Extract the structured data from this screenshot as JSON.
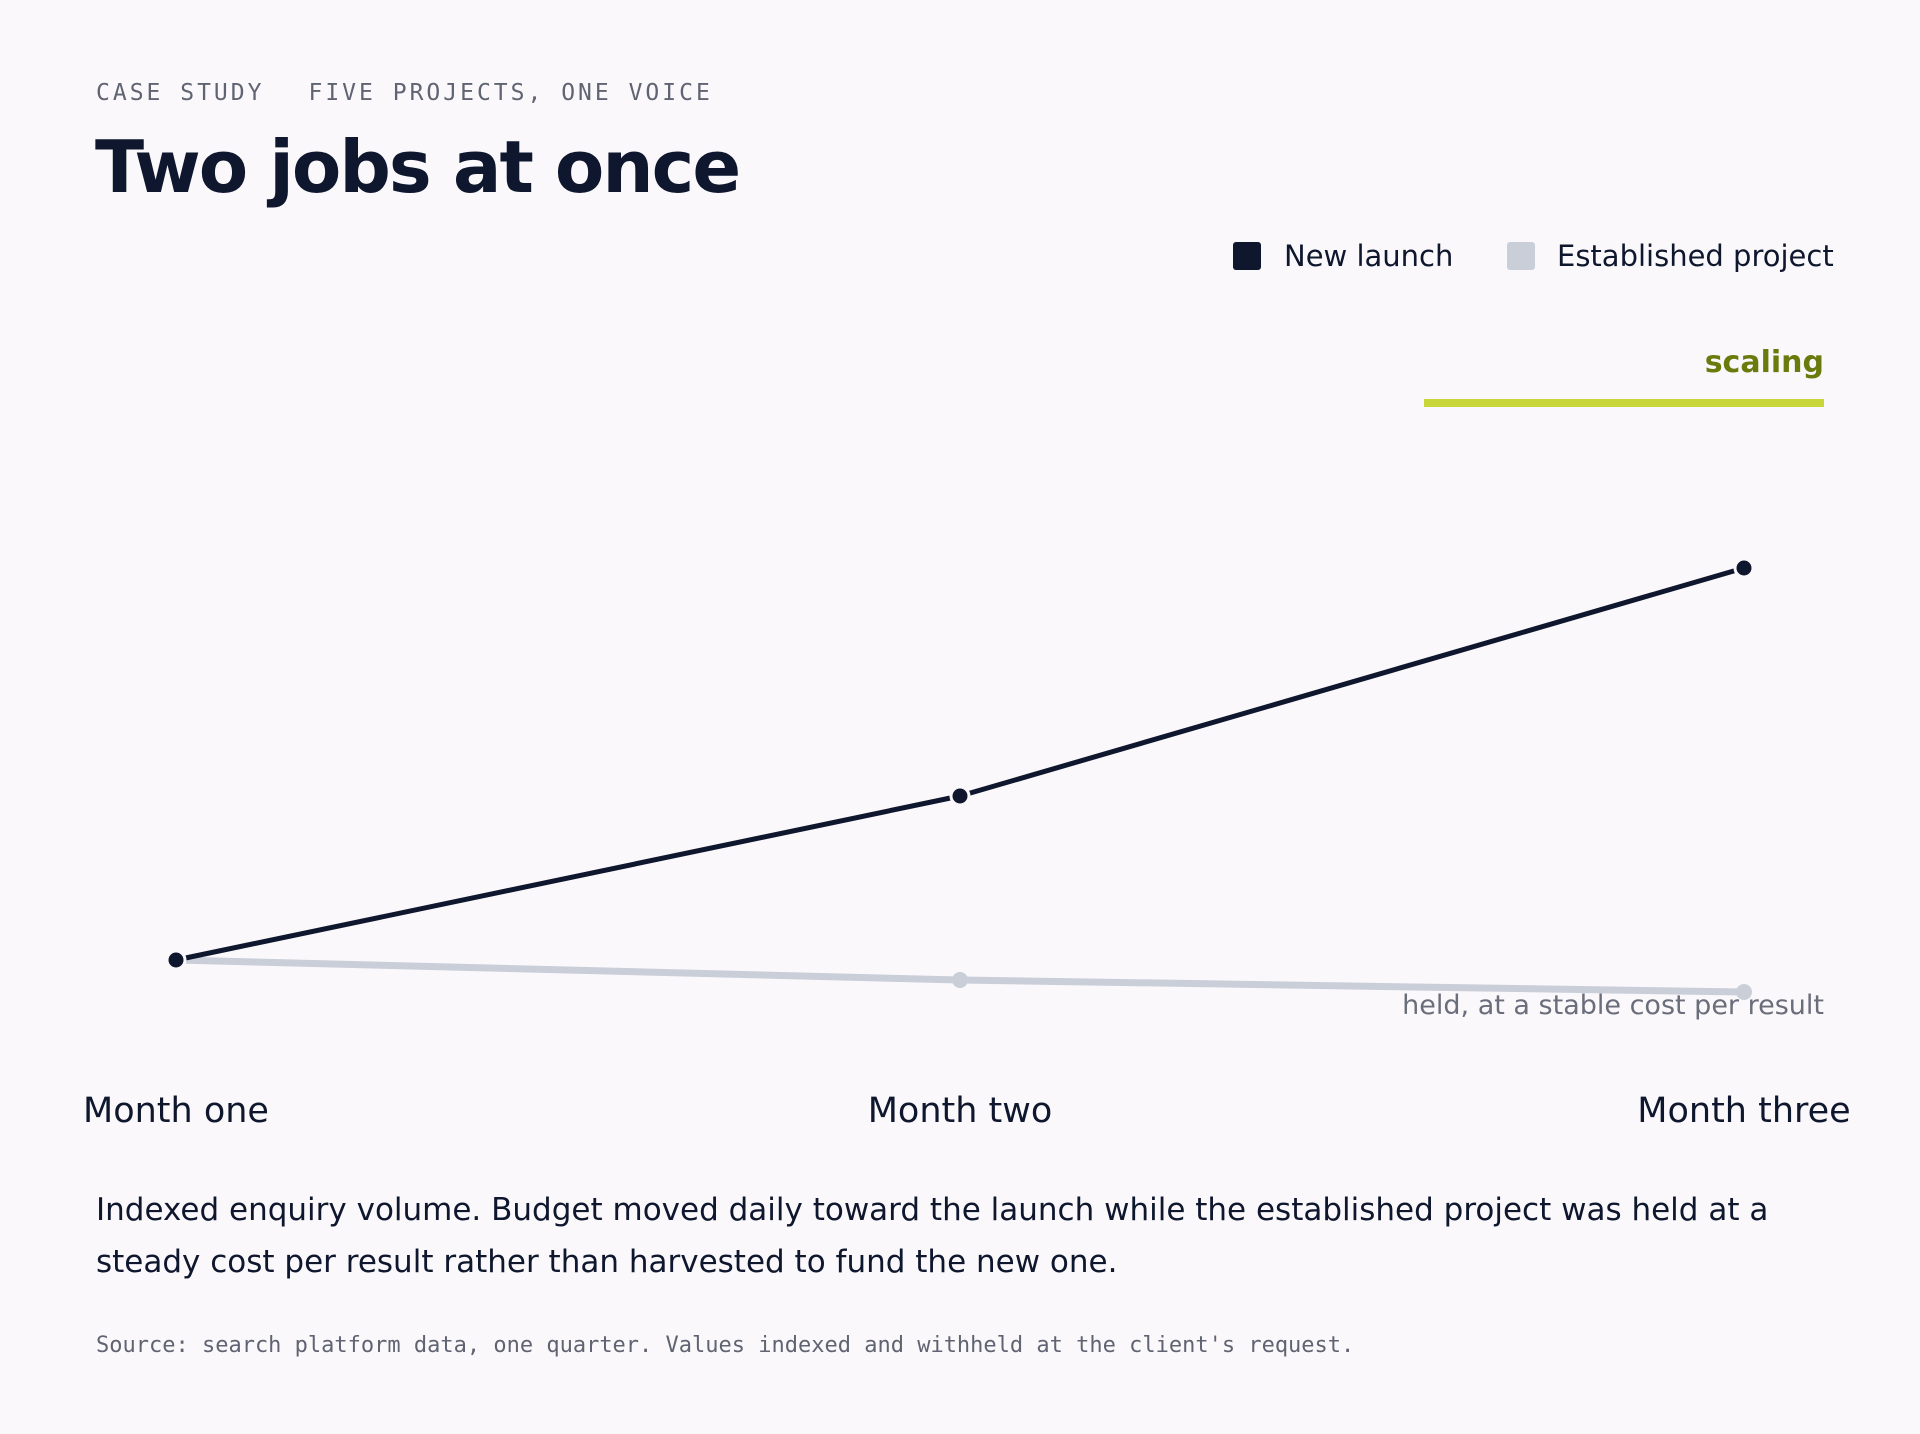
{
  "header": {
    "eyebrow_left": "CASE STUDY",
    "eyebrow_right": "FIVE PROJECTS, ONE VOICE",
    "title": "Two jobs at once"
  },
  "chart_data": {
    "type": "line",
    "title": "Two jobs at once",
    "x": [
      "Month one",
      "Month two",
      "Month three"
    ],
    "series": [
      {
        "name": "New launch",
        "values": [
          100,
          141,
          198
        ],
        "color": "#0f172e"
      },
      {
        "name": "Established project",
        "values": [
          100,
          95,
          92
        ],
        "color": "#c9ced9"
      }
    ],
    "ylim": [
      60,
      240
    ],
    "grid": false,
    "legend": "top-right",
    "annotations": {
      "band_label": "scaling",
      "band_color": "#c9d63a",
      "note": "held, at a stable cost per result"
    }
  },
  "caption": "Indexed enquiry volume. Budget moved daily toward the launch while the established project was held at a steady cost per result rather than harvested to fund the new one.",
  "source": "Source: search platform data, one quarter. Values indexed and withheld at the client's request."
}
